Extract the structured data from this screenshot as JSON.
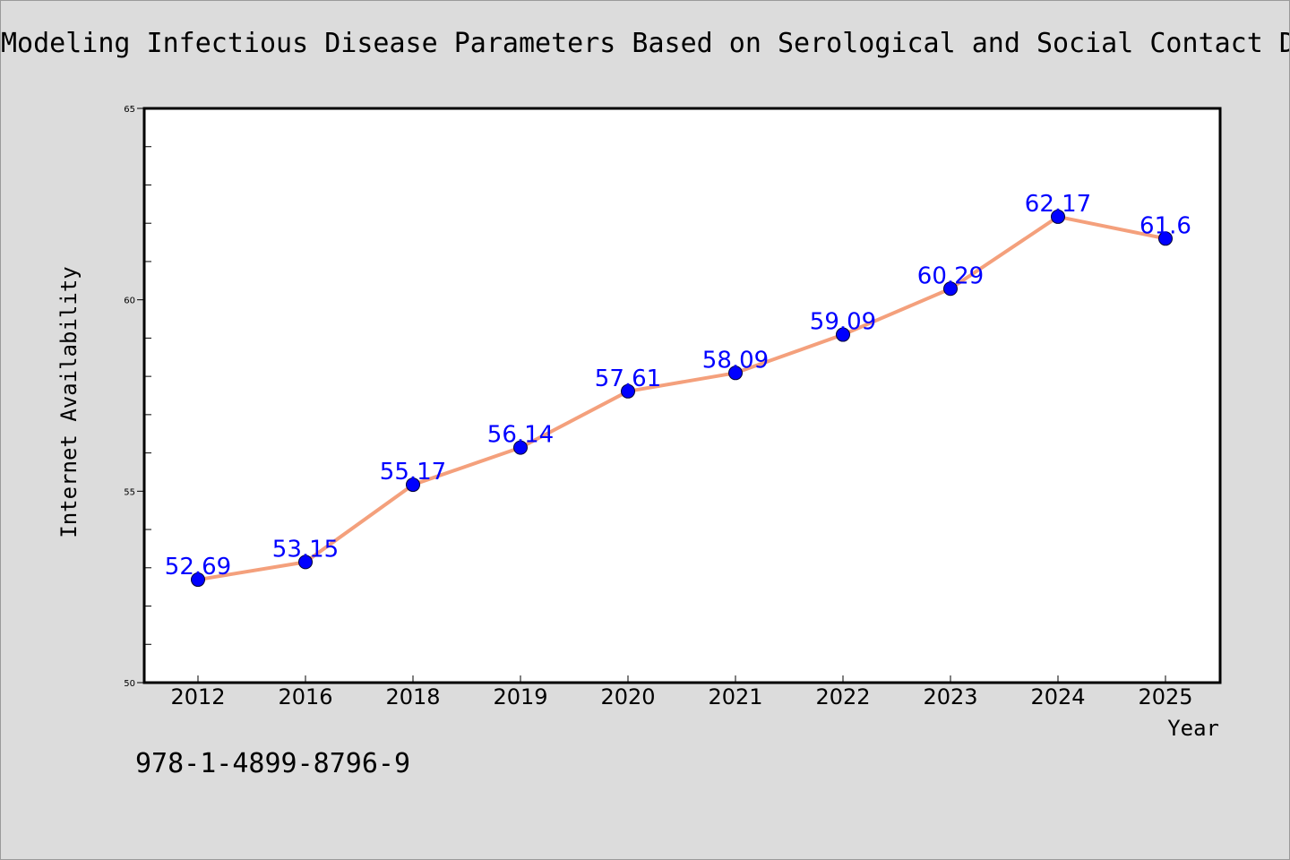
{
  "chart_data": {
    "type": "line",
    "title": "Modeling Infectious Disease Parameters Based on Serological and Social Contact Data",
    "xlabel": "Year",
    "ylabel": "Internet Availability",
    "categories": [
      "2012",
      "2016",
      "2018",
      "2019",
      "2020",
      "2021",
      "2022",
      "2023",
      "2024",
      "2025"
    ],
    "series": [
      {
        "values": [
          52.69,
          53.15,
          55.17,
          56.14,
          57.61,
          58.09,
          59.09,
          60.29,
          62.17,
          61.6
        ],
        "line_color": "#f4a07c",
        "marker_color": "#0000ff"
      }
    ],
    "data_labels": [
      "52.69",
      "53.15",
      "55.17",
      "56.14",
      "57.61",
      "58.09",
      "59.09",
      "60.29",
      "62.17",
      "61.6"
    ],
    "ylim": [
      50,
      65
    ],
    "yticks": [
      "50",
      "55",
      "60",
      "65"
    ],
    "grid": false,
    "legend": "none"
  },
  "footer": {
    "note": "978-1-4899-8796-9"
  },
  "colors": {
    "background": "#dcdcdc",
    "plot_background": "#ffffff",
    "label_color": "#0000ff"
  }
}
